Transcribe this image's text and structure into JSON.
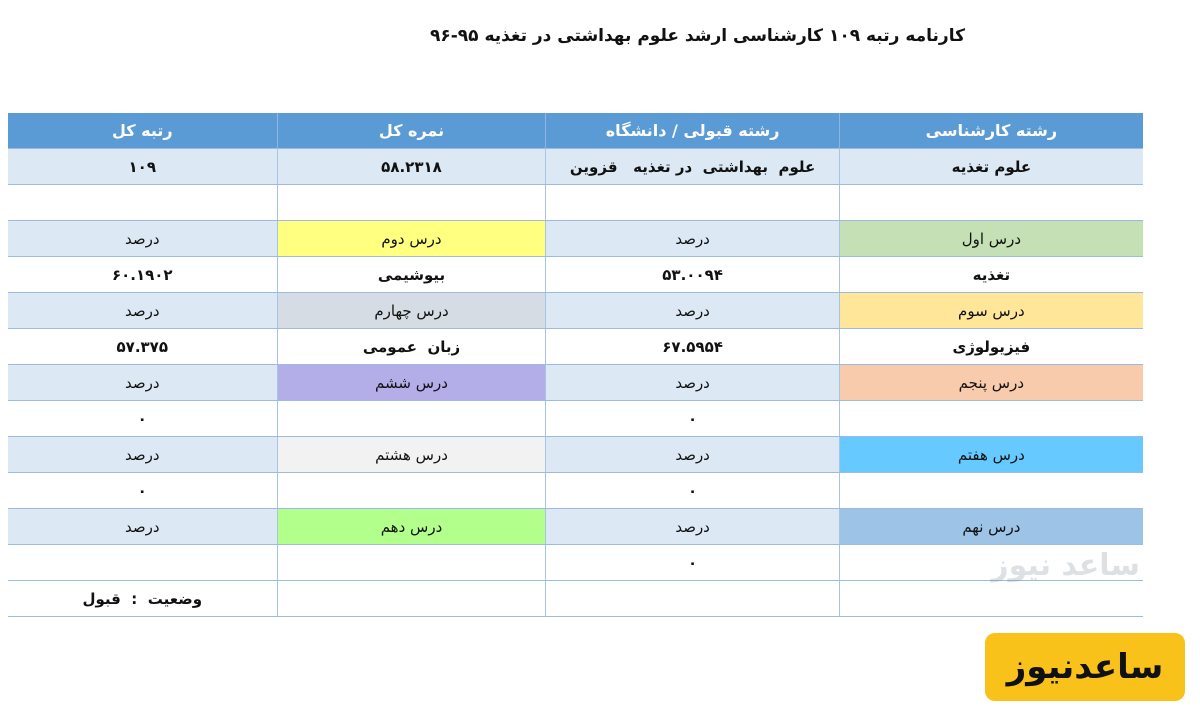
{
  "title": "کارنامه رتبه ۱۰۹ کارشناسی ارشد علوم بهداشتی در تغذیه ۹۵-۹۶",
  "header": {
    "field": "رشته کارشناسی",
    "accepted": "رشته قبولی / دانشگاه",
    "total_score": "نمره کل",
    "total_rank": "رتبه کل"
  },
  "summary": {
    "field": "علوم تغذیه",
    "accepted": "علوم  بهداشتی  در تغذیه   قزوین",
    "total_score": "۵۸.۲۳۱۸",
    "total_rank": "۱۰۹"
  },
  "percent_label": "درصد",
  "courses": [
    {
      "label": "درس اول",
      "name": "تغذیه",
      "value": "۵۳.۰۰۹۴",
      "color": "#c5e0b4"
    },
    {
      "label": "درس دوم",
      "name": "بیوشیمی",
      "value": "۶۰.۱۹۰۲",
      "color": "#ffff80"
    },
    {
      "label": "درس سوم",
      "name": "فیزیولوژی",
      "value": "۶۷.۵۹۵۴",
      "color": "#ffe699"
    },
    {
      "label": "درس چهارم",
      "name": "زبان  عمومی",
      "value": "۵۷.۳۷۵",
      "color": "#d6dce4"
    },
    {
      "label": "درس پنجم",
      "name": "",
      "value": "۰",
      "color": "#f8cbad"
    },
    {
      "label": "درس ششم",
      "name": "",
      "value": "۰",
      "color": "#b4aee8"
    },
    {
      "label": "درس هفتم",
      "name": "",
      "value": "۰",
      "color": "#66c9ff"
    },
    {
      "label": "درس هشتم",
      "name": "",
      "value": "۰",
      "color": "#f2f2f2"
    },
    {
      "label": "درس نهم",
      "name": "",
      "value": "۰",
      "color": "#9dc3e6"
    },
    {
      "label": "درس دهم",
      "name": "",
      "value": "",
      "color": "#b3ff8c"
    }
  ],
  "status": "وضعیت  :  قبول",
  "watermark": "ساعد نیوز",
  "logo": "ساعدنیوز"
}
